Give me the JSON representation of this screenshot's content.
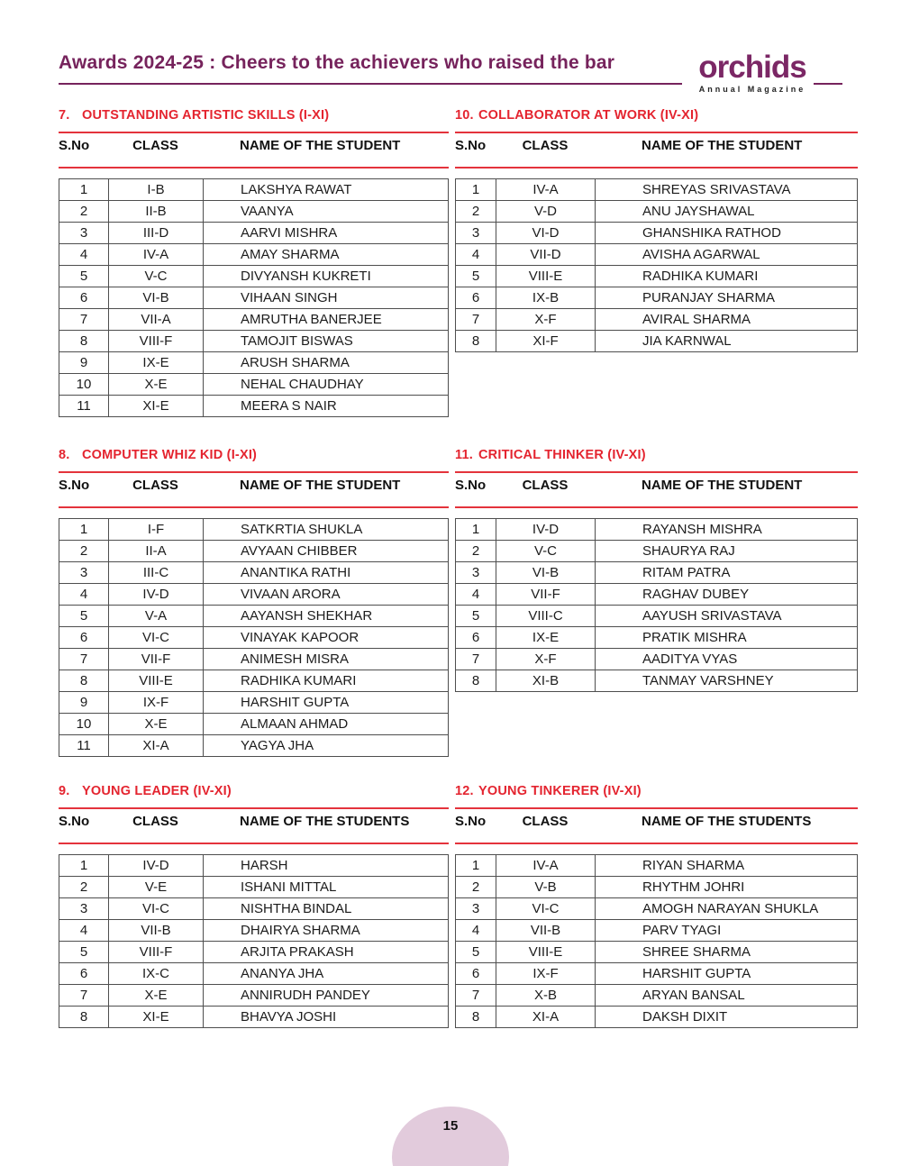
{
  "header": {
    "title": "Awards 2024-25 : Cheers to the achievers who raised the bar",
    "logo": {
      "wordmark": "orchids",
      "tagline": "Annual Magazine"
    }
  },
  "colors": {
    "title_purple": "#76235C",
    "logo_purple": "#7B2765",
    "section_heading_red": "#E4242F",
    "rule_red": "#E4333C",
    "table_border_gray": "#4E4E4E",
    "page_badge_pink": "#E2CBDC"
  },
  "tables": [
    {
      "number": "7.",
      "title": "OUTSTANDING ARTISTIC SKILLS (I-XI)",
      "columns": [
        "S.No",
        "CLASS",
        "NAME OF THE STUDENT"
      ],
      "rows": [
        [
          "1",
          "I-B",
          "LAKSHYA RAWAT"
        ],
        [
          "2",
          "II-B",
          "VAANYA"
        ],
        [
          "3",
          "III-D",
          "AARVI MISHRA"
        ],
        [
          "4",
          "IV-A",
          "AMAY SHARMA"
        ],
        [
          "5",
          "V-C",
          "DIVYANSH KUKRETI"
        ],
        [
          "6",
          "VI-B",
          "VIHAAN SINGH"
        ],
        [
          "7",
          "VII-A",
          "AMRUTHA BANERJEE"
        ],
        [
          "8",
          "VIII-F",
          "TAMOJIT BISWAS"
        ],
        [
          "9",
          "IX-E",
          "ARUSH SHARMA"
        ],
        [
          "10",
          "X-E",
          "NEHAL CHAUDHAY"
        ],
        [
          "11",
          "XI-E",
          "MEERA S NAIR"
        ]
      ]
    },
    {
      "number": "8.",
      "title": "COMPUTER WHIZ KID (I-XI)",
      "columns": [
        "S.No",
        "CLASS",
        "NAME OF THE STUDENT"
      ],
      "rows": [
        [
          "1",
          "I-F",
          "SATKRTIA SHUKLA"
        ],
        [
          "2",
          "II-A",
          "AVYAAN CHIBBER"
        ],
        [
          "3",
          "III-C",
          "ANANTIKA RATHI"
        ],
        [
          "4",
          "IV-D",
          "VIVAAN ARORA"
        ],
        [
          "5",
          "V-A",
          "AAYANSH SHEKHAR"
        ],
        [
          "6",
          "VI-C",
          "VINAYAK KAPOOR"
        ],
        [
          "7",
          "VII-F",
          "ANIMESH MISRA"
        ],
        [
          "8",
          "VIII-E",
          "RADHIKA KUMARI"
        ],
        [
          "9",
          "IX-F",
          "HARSHIT GUPTA"
        ],
        [
          "10",
          "X-E",
          "ALMAAN AHMAD"
        ],
        [
          "11",
          "XI-A",
          "YAGYA JHA"
        ]
      ]
    },
    {
      "number": "9.",
      "title": "YOUNG LEADER (IV-XI)",
      "columns": [
        "S.No",
        "CLASS",
        "NAME OF THE STUDENTS"
      ],
      "rows": [
        [
          "1",
          "IV-D",
          "HARSH"
        ],
        [
          "2",
          "V-E",
          "ISHANI MITTAL"
        ],
        [
          "3",
          "VI-C",
          "NISHTHA BINDAL"
        ],
        [
          "4",
          "VII-B",
          "DHAIRYA SHARMA"
        ],
        [
          "5",
          "VIII-F",
          "ARJITA PRAKASH"
        ],
        [
          "6",
          "IX-C",
          "ANANYA JHA"
        ],
        [
          "7",
          "X-E",
          "ANNIRUDH PANDEY"
        ],
        [
          "8",
          "XI-E",
          "BHAVYA JOSHI"
        ]
      ]
    },
    {
      "number": "10.",
      "title": "COLLABORATOR AT WORK (IV-XI)",
      "columns": [
        "S.No",
        "CLASS",
        "NAME OF THE STUDENT"
      ],
      "rows": [
        [
          "1",
          "IV-A",
          "SHREYAS SRIVASTAVA"
        ],
        [
          "2",
          "V-D",
          "ANU JAYSHAWAL"
        ],
        [
          "3",
          "VI-D",
          "GHANSHIKA RATHOD"
        ],
        [
          "4",
          "VII-D",
          "AVISHA AGARWAL"
        ],
        [
          "5",
          "VIII-E",
          "RADHIKA KUMARI"
        ],
        [
          "6",
          "IX-B",
          "PURANJAY SHARMA"
        ],
        [
          "7",
          "X-F",
          "AVIRAL SHARMA"
        ],
        [
          "8",
          "XI-F",
          "JIA KARNWAL"
        ]
      ]
    },
    {
      "number": "11.",
      "title": "CRITICAL THINKER (IV-XI)",
      "columns": [
        "S.No",
        "CLASS",
        "NAME OF THE STUDENT"
      ],
      "rows": [
        [
          "1",
          "IV-D",
          "RAYANSH MISHRA"
        ],
        [
          "2",
          "V-C",
          "SHAURYA RAJ"
        ],
        [
          "3",
          "VI-B",
          "RITAM PATRA"
        ],
        [
          "4",
          "VII-F",
          "RAGHAV DUBEY"
        ],
        [
          "5",
          "VIII-C",
          "AAYUSH SRIVASTAVA"
        ],
        [
          "6",
          "IX-E",
          "PRATIK MISHRA"
        ],
        [
          "7",
          "X-F",
          "AADITYA VYAS"
        ],
        [
          "8",
          "XI-B",
          "TANMAY VARSHNEY"
        ]
      ]
    },
    {
      "number": "12.",
      "title": "YOUNG TINKERER (IV-XI)",
      "columns": [
        "S.No",
        "CLASS",
        "NAME OF THE STUDENTS"
      ],
      "rows": [
        [
          "1",
          "IV-A",
          "RIYAN SHARMA"
        ],
        [
          "2",
          "V-B",
          "RHYTHM JOHRI"
        ],
        [
          "3",
          "VI-C",
          "AMOGH NARAYAN SHUKLA"
        ],
        [
          "4",
          "VII-B",
          "PARV TYAGI"
        ],
        [
          "5",
          "VIII-E",
          "SHREE SHARMA"
        ],
        [
          "6",
          "IX-F",
          "HARSHIT GUPTA"
        ],
        [
          "7",
          "X-B",
          "ARYAN BANSAL"
        ],
        [
          "8",
          "XI-A",
          "DAKSH DIXIT"
        ]
      ]
    }
  ],
  "footer": {
    "page_number": "15"
  }
}
